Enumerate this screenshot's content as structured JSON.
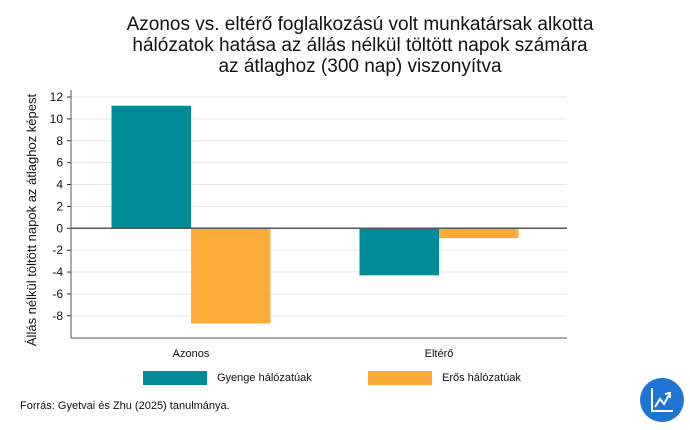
{
  "chart_data": {
    "type": "bar",
    "title": "Azonos vs. eltérő foglalkozású volt munkatársak alkotta hálózatok hatása az állás nélkül töltött napok számára az átlaghoz (300 nap) viszonyítva",
    "title_lines": [
      "Azonos vs. eltérő foglalkozású volt munkatársak alkotta",
      "hálózatok hatása az állás nélkül töltött napok számára",
      "az átlaghoz (300 nap) viszonyítva"
    ],
    "xlabel": "",
    "ylabel": "Állás nélkül töltött napok az átlaghoz képest",
    "ylim": [
      -10,
      12.5
    ],
    "yticks": [
      12,
      10,
      8,
      6,
      4,
      2,
      0,
      -2,
      -4,
      -6,
      -8
    ],
    "grid": true,
    "categories": [
      "Azonos",
      "Eltérő"
    ],
    "series": [
      {
        "name": "Gyenge hálózatúak",
        "color": "#008b99",
        "values": [
          11.2,
          -4.3
        ]
      },
      {
        "name": "Erős hálózatúak",
        "color": "#fbab36",
        "values": [
          -8.7,
          -0.9
        ]
      }
    ],
    "legend_position": "bottom"
  },
  "source": "Forrás: Gyetvai és Zhu (2025) tanulmánya.",
  "logo_icon": "trend-chart-icon"
}
